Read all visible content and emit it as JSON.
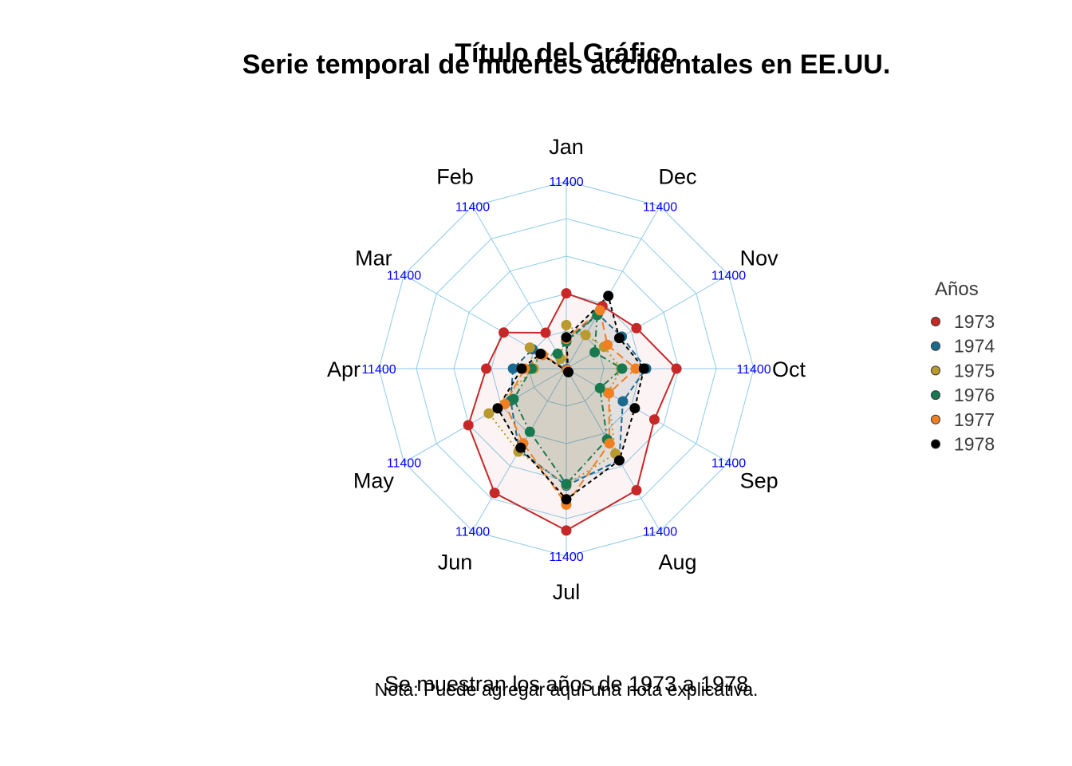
{
  "chart_data": {
    "type": "radar",
    "title": "Título del Gráfico",
    "subtitle": "Serie temporal de muertes accidentales en EE.UU.",
    "caption": "Se muestran los años de 1973 a 1978",
    "note": "Nota: Puede agregar aquí una nota explicativa.",
    "categories": [
      "Jan",
      "Feb",
      "Mar",
      "Apr",
      "May",
      "Jun",
      "Jul",
      "Aug",
      "Sep",
      "Oct",
      "Nov",
      "Dec"
    ],
    "ring_label": "11400",
    "range": [
      7000,
      12000
    ],
    "legend_title": "Años",
    "series": [
      {
        "name": "1973",
        "color": "#C62828",
        "dash": "",
        "values": [
          9007,
          8106,
          8928,
          9137,
          10017,
          10826,
          11317,
          10744,
          9713,
          9938,
          9161,
          8927
        ]
      },
      {
        "name": "1974",
        "color": "#1B6A8F",
        "dash": "7,4",
        "values": [
          7750,
          6981,
          8038,
          8422,
          8714,
          9512,
          10120,
          9823,
          8743,
          9129,
          8710,
          8680
        ]
      },
      {
        "name": "1975",
        "color": "#B89A2E",
        "dash": "2,4",
        "values": [
          8162,
          7306,
          8124,
          7870,
          9387,
          9556,
          10093,
          9620,
          8285,
          8466,
          8160,
          8034
        ]
      },
      {
        "name": "1976",
        "color": "#16794F",
        "dash": "8,4,2,4",
        "values": [
          7717,
          7461,
          7767,
          7925,
          8623,
          8945,
          10078,
          9179,
          8037,
          8488,
          7874,
          8647
        ]
      },
      {
        "name": "1977",
        "color": "#F07F22",
        "dash": "10,5",
        "values": [
          7792,
          6957,
          7726,
          8106,
          8890,
          9299,
          10625,
          9302,
          8314,
          8850,
          8265,
          8796
        ]
      },
      {
        "name": "1978",
        "color": "#000000",
        "dash": "5,4",
        "values": [
          7836,
          6892,
          7791,
          8192,
          9115,
          9434,
          10484,
          9827,
          9110,
          9070,
          8633,
          9240
        ]
      }
    ]
  }
}
